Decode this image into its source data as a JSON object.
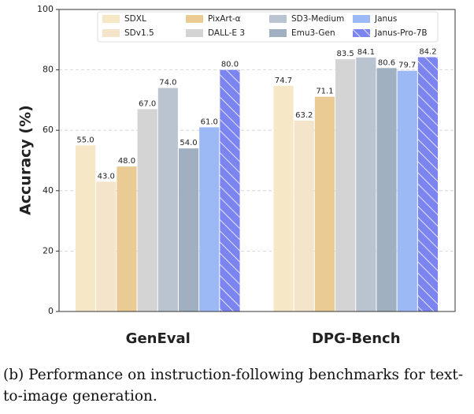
{
  "chart_data": {
    "type": "bar",
    "caption": "(b) Performance on instruction-following benchmarks for text-to-image generation.",
    "ylabel": "Accuracy (%)",
    "categories": [
      "GenEval",
      "DPG-Bench"
    ],
    "series": [
      {
        "name": "SDXL",
        "color": "#f6e8c6",
        "values": [
          55,
          74.7
        ],
        "value_labels": [
          "55.0",
          "74.7"
        ]
      },
      {
        "name": "SDv1.5",
        "color": "#f4e4c9",
        "values": [
          43,
          63.2
        ],
        "value_labels": [
          "43.0",
          "63.2"
        ]
      },
      {
        "name": "PixArt-α",
        "color": "#e9cb93",
        "values": [
          48,
          71.1
        ],
        "value_labels": [
          "48.0",
          "71.1"
        ]
      },
      {
        "name": "DALL-E 3",
        "color": "#d4d4d4",
        "values": [
          67,
          83.5
        ],
        "value_labels": [
          "67.0",
          "83.5"
        ]
      },
      {
        "name": "SD3-Medium",
        "color": "#bac4d0",
        "values": [
          74,
          84.1
        ],
        "value_labels": [
          "74.0",
          "84.1"
        ]
      },
      {
        "name": "Emu3-Gen",
        "color": "#a0b0c1",
        "values": [
          54,
          80.6
        ],
        "value_labels": [
          "54.0",
          "80.6"
        ]
      },
      {
        "name": "Janus",
        "color": "#9cb9f6",
        "values": [
          61,
          79.7
        ],
        "value_labels": [
          "61.0",
          "79.7"
        ]
      },
      {
        "name": "Janus-Pro-7B",
        "color": "#7c84f0",
        "hatch": true,
        "values": [
          80,
          84.2
        ],
        "value_labels": [
          "80.0",
          "84.2"
        ]
      }
    ],
    "ylim": [
      0,
      100
    ],
    "yticks": [
      0,
      20,
      40,
      60,
      80,
      100
    ],
    "grid": true
  }
}
